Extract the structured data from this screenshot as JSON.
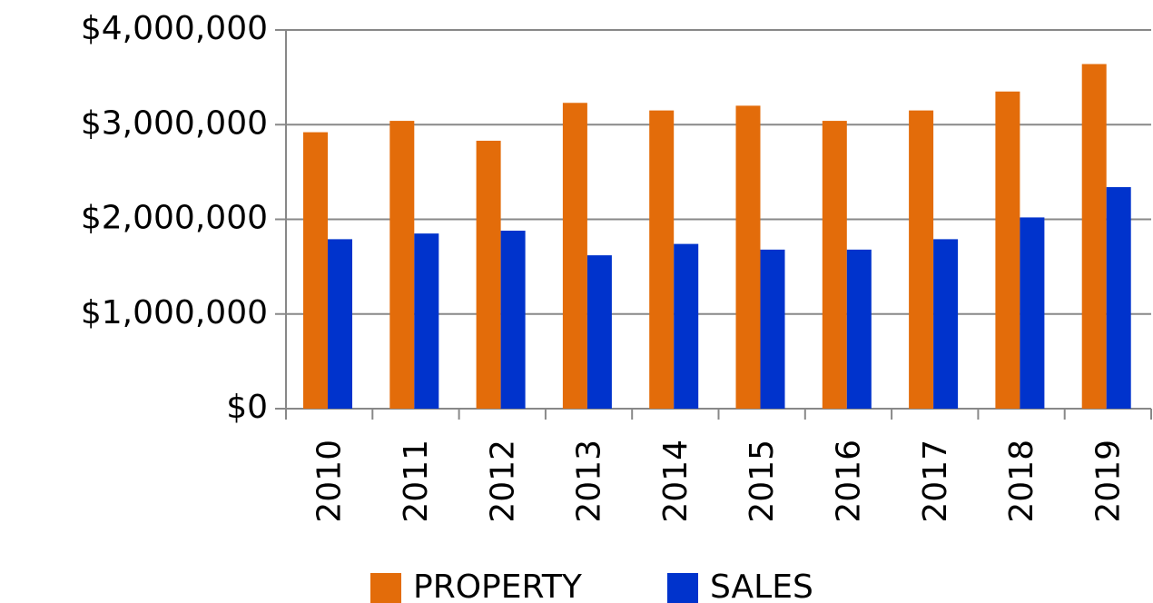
{
  "chart_data": {
    "type": "bar",
    "categories": [
      "2010",
      "2011",
      "2012",
      "2013",
      "2014",
      "2015",
      "2016",
      "2017",
      "2018",
      "2019"
    ],
    "series": [
      {
        "name": "PROPERTY",
        "color": "#e36c0a",
        "values": [
          2920000,
          3040000,
          2830000,
          3230000,
          3150000,
          3200000,
          3040000,
          3150000,
          3350000,
          3640000
        ]
      },
      {
        "name": "SALES",
        "color": "#0033cc",
        "values": [
          1790000,
          1850000,
          1880000,
          1620000,
          1740000,
          1680000,
          1680000,
          1790000,
          2020000,
          2340000
        ]
      }
    ],
    "ylim": [
      0,
      4000000
    ],
    "yticks": [
      {
        "value": 0,
        "label": "$0"
      },
      {
        "value": 1000000,
        "label": "$1,000,000"
      },
      {
        "value": 2000000,
        "label": "$2,000,000"
      },
      {
        "value": 3000000,
        "label": "$3,000,000"
      },
      {
        "value": 4000000,
        "label": "$4,000,000"
      }
    ],
    "grid": true,
    "legend": "bottom"
  }
}
